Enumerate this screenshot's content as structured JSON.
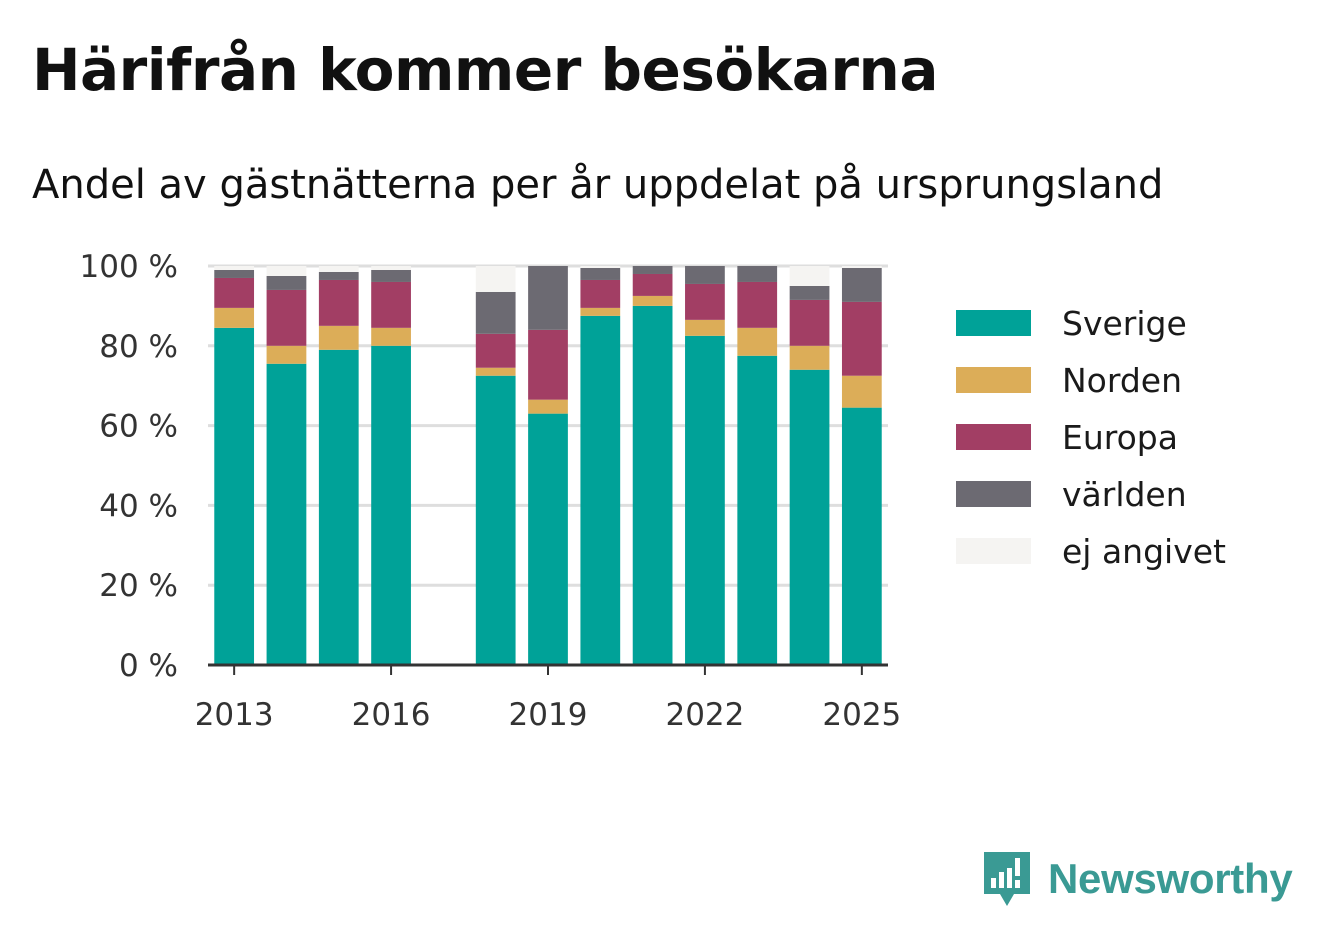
{
  "title": "Härifrån kommer besökarna",
  "subtitle": "Andel av gästnätterna per år uppdelat på ursprungsland",
  "brand": {
    "name": "Newsworthy",
    "color": "#3a9a94",
    "logo_icon": "bar-chart-speech-bubble-icon"
  },
  "chart_data": {
    "type": "bar",
    "stacked": true,
    "categories": [
      "2013",
      "2014",
      "2015",
      "2016",
      "2017",
      "2018",
      "2019",
      "2020",
      "2021",
      "2022",
      "2023",
      "2024",
      "2025"
    ],
    "x_tick_labels": [
      "2013",
      "2016",
      "2019",
      "2022",
      "2025"
    ],
    "y_tick_labels": [
      "0 %",
      "20 %",
      "40 %",
      "60 %",
      "80 %",
      "100 %"
    ],
    "y_ticks": [
      0,
      20,
      40,
      60,
      80,
      100
    ],
    "ylim": [
      0,
      100
    ],
    "grid": true,
    "legend_position": "right",
    "series": [
      {
        "name": "Sverige",
        "color": "#00a298",
        "values": [
          84.5,
          75.5,
          79,
          80,
          null,
          72.5,
          63,
          87.5,
          90,
          82.5,
          77.5,
          74,
          64.5
        ]
      },
      {
        "name": "Norden",
        "color": "#dcad58",
        "values": [
          5,
          4.5,
          6,
          4.5,
          null,
          2,
          3.5,
          2,
          2.5,
          4,
          7,
          6,
          8
        ]
      },
      {
        "name": "Europa",
        "color": "#a23e64",
        "values": [
          7.5,
          14,
          11.5,
          11.5,
          null,
          8.5,
          17.5,
          7,
          5.5,
          9,
          11.5,
          11.5,
          18.5
        ]
      },
      {
        "name": "världen",
        "color": "#6c6a72",
        "values": [
          2,
          3.5,
          2,
          3,
          null,
          10.5,
          16,
          3,
          2,
          4.5,
          4,
          3.5,
          8.5
        ]
      },
      {
        "name": "ej angivet",
        "color": "#f5f4f2",
        "values": [
          1,
          2.5,
          1.5,
          1,
          null,
          6.5,
          0,
          0.5,
          0,
          0,
          0,
          5,
          0.5
        ]
      }
    ]
  }
}
